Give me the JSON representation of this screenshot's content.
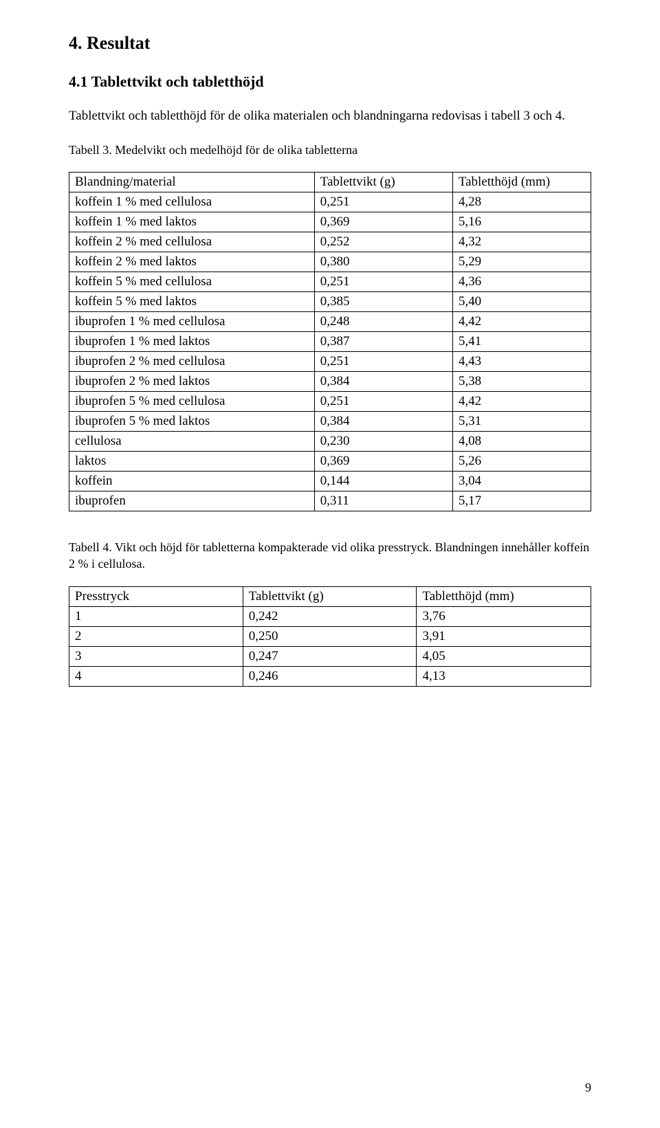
{
  "section": {
    "heading": "4. Resultat",
    "sub_heading": "4.1 Tablettvikt och tabletthöjd",
    "intro": "Tablettvikt och tabletthöjd för de olika materialen och blandningarna redovisas i tabell 3 och 4."
  },
  "table3": {
    "caption": "Tabell 3. Medelvikt och medelhöjd för de olika tabletterna",
    "headers": [
      "Blandning/material",
      "Tablettvikt (g)",
      "Tabletthöjd (mm)"
    ],
    "rows": [
      [
        "koffein 1 % med cellulosa",
        "0,251",
        "4,28"
      ],
      [
        "koffein 1 % med laktos",
        "0,369",
        "5,16"
      ],
      [
        "koffein 2 % med cellulosa",
        "0,252",
        "4,32"
      ],
      [
        "koffein 2 % med laktos",
        "0,380",
        "5,29"
      ],
      [
        "koffein 5 % med cellulosa",
        "0,251",
        "4,36"
      ],
      [
        "koffein 5 % med laktos",
        "0,385",
        "5,40"
      ],
      [
        "ibuprofen 1 % med cellulosa",
        "0,248",
        "4,42"
      ],
      [
        "ibuprofen 1 % med laktos",
        "0,387",
        "5,41"
      ],
      [
        "ibuprofen 2 % med cellulosa",
        "0,251",
        "4,43"
      ],
      [
        "ibuprofen 2 % med laktos",
        "0,384",
        "5,38"
      ],
      [
        "ibuprofen 5 % med cellulosa",
        "0,251",
        "4,42"
      ],
      [
        "ibuprofen 5 % med laktos",
        "0,384",
        "5,31"
      ],
      [
        "cellulosa",
        "0,230",
        "4,08"
      ],
      [
        "laktos",
        "0,369",
        "5,26"
      ],
      [
        "koffein",
        "0,144",
        "3,04"
      ],
      [
        "ibuprofen",
        "0,311",
        "5,17"
      ]
    ],
    "col_widths": [
      "47%",
      "26.5%",
      "26.5%"
    ]
  },
  "table4": {
    "caption": "Tabell 4. Vikt och höjd för tabletterna kompakterade vid olika presstryck. Blandningen innehåller koffein 2 % i cellulosa.",
    "headers": [
      "Presstryck",
      "Tablettvikt (g)",
      "Tabletthöjd (mm)"
    ],
    "rows": [
      [
        "1",
        "0,242",
        "3,76"
      ],
      [
        "2",
        "0,250",
        "3,91"
      ],
      [
        "3",
        "0,247",
        "4,05"
      ],
      [
        "4",
        "0,246",
        "4,13"
      ]
    ],
    "col_widths": [
      "33.3%",
      "33.3%",
      "33.4%"
    ]
  },
  "page_number": "9"
}
